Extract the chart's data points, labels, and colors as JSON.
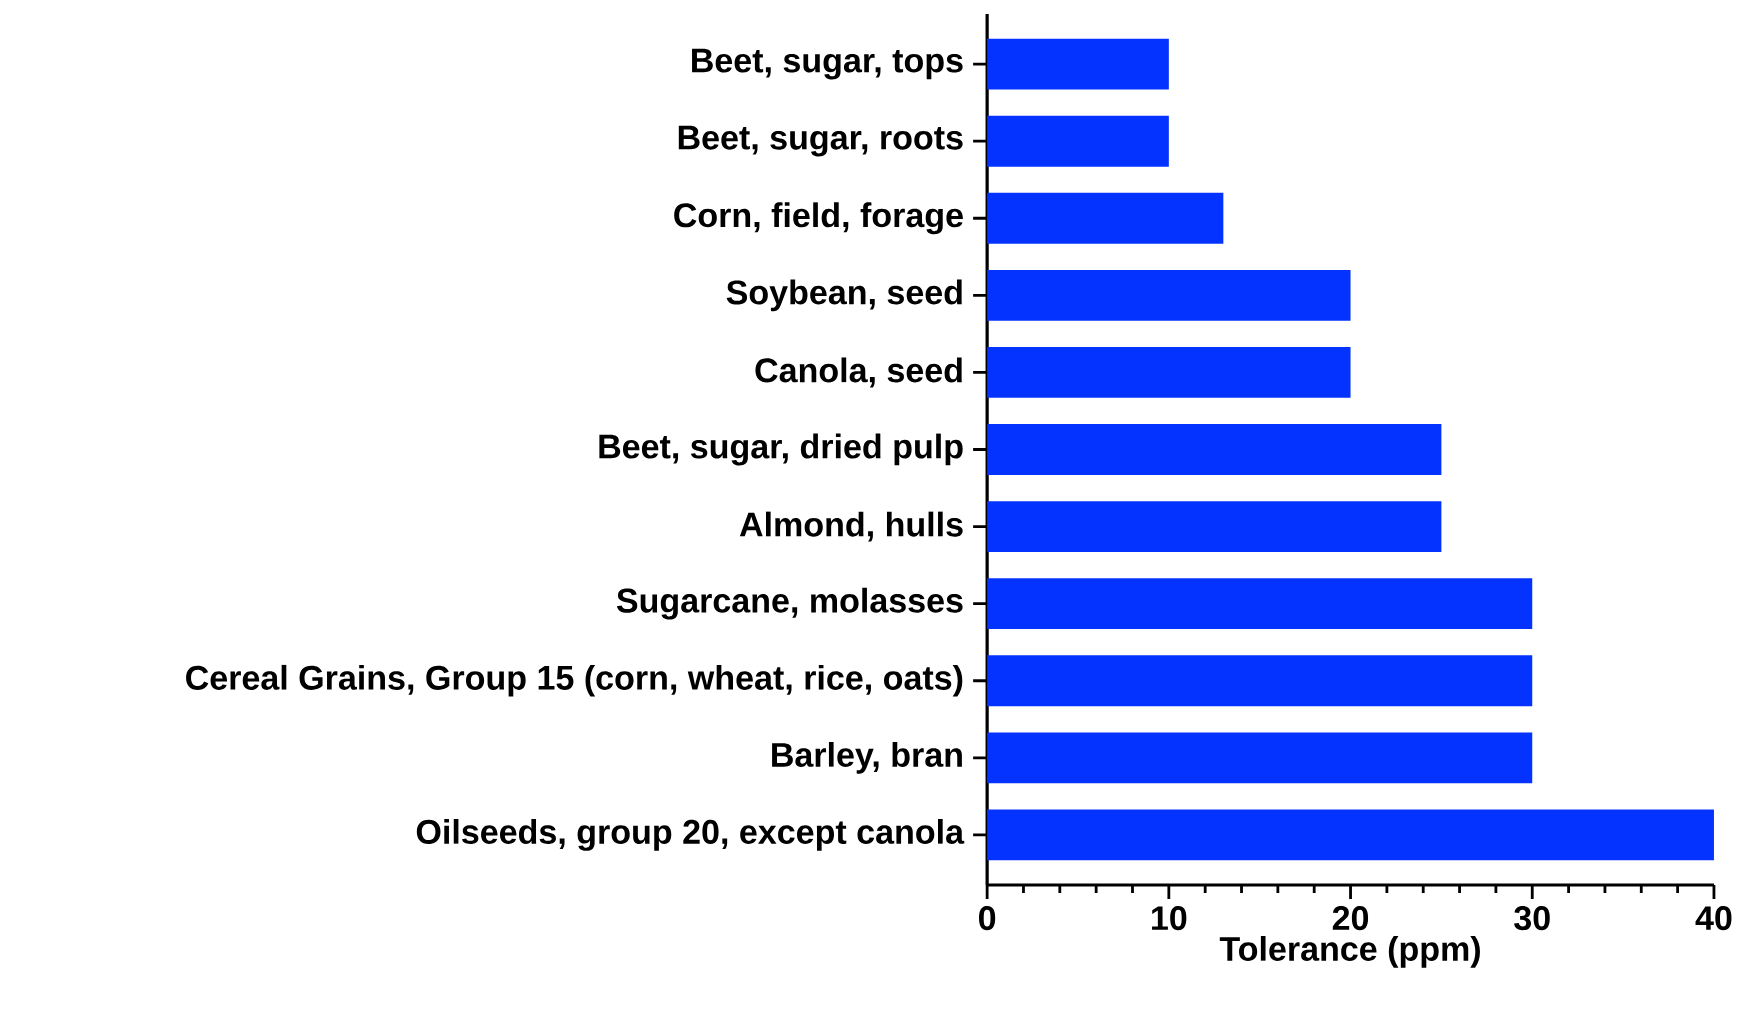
{
  "chart_data": {
    "type": "bar",
    "orientation": "horizontal",
    "xlabel": "Tolerance (ppm)",
    "categories": [
      "Beet, sugar, tops",
      "Beet, sugar, roots",
      "Corn, field, forage",
      "Soybean, seed",
      "Canola, seed",
      "Beet, sugar, dried pulp",
      "Almond, hulls",
      "Sugarcane, molasses",
      "Cereal Grains, Group 15 (corn, wheat, rice, oats)",
      "Barley, bran",
      "Oilseeds, group 20, except canola"
    ],
    "values": [
      10,
      10,
      13,
      20,
      20,
      25,
      25,
      30,
      30,
      30,
      40
    ],
    "color": "#0433ff",
    "xlim": [
      0,
      40
    ],
    "xticks": [
      0,
      {
        "value": 2,
        "label": null
      },
      {
        "value": 4,
        "label": null
      },
      {
        "value": 6,
        "label": null
      },
      {
        "value": 8,
        "label": null
      },
      10,
      {
        "value": 12,
        "label": null
      },
      {
        "value": 14,
        "label": null
      },
      {
        "value": 16,
        "label": null
      },
      {
        "value": 18,
        "label": null
      },
      20,
      {
        "value": 22,
        "label": null
      },
      {
        "value": 24,
        "label": null
      },
      {
        "value": 26,
        "label": null
      },
      {
        "value": 28,
        "label": null
      },
      30,
      {
        "value": 32,
        "label": null
      },
      {
        "value": 34,
        "label": null
      },
      {
        "value": 36,
        "label": null
      },
      {
        "value": 38,
        "label": null
      },
      40
    ],
    "grid": false
  }
}
